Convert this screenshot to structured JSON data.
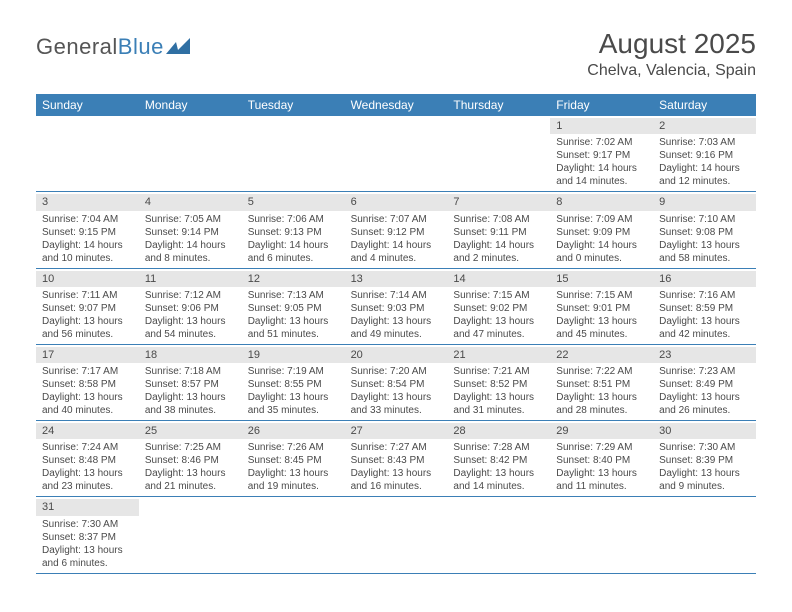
{
  "brand": {
    "general": "General",
    "blue": "Blue"
  },
  "title": "August 2025",
  "location": "Chelva, Valencia, Spain",
  "colors": {
    "header_bg": "#3b7fb6",
    "header_text": "#ffffff",
    "daynum_bg": "#e6e6e6",
    "text": "#4a4a4a",
    "rule": "#3b7fb6"
  },
  "day_names": [
    "Sunday",
    "Monday",
    "Tuesday",
    "Wednesday",
    "Thursday",
    "Friday",
    "Saturday"
  ],
  "weeks": [
    [
      {
        "n": "",
        "sr": "",
        "ss": "",
        "dl": ""
      },
      {
        "n": "",
        "sr": "",
        "ss": "",
        "dl": ""
      },
      {
        "n": "",
        "sr": "",
        "ss": "",
        "dl": ""
      },
      {
        "n": "",
        "sr": "",
        "ss": "",
        "dl": ""
      },
      {
        "n": "",
        "sr": "",
        "ss": "",
        "dl": ""
      },
      {
        "n": "1",
        "sr": "Sunrise: 7:02 AM",
        "ss": "Sunset: 9:17 PM",
        "dl": "Daylight: 14 hours and 14 minutes."
      },
      {
        "n": "2",
        "sr": "Sunrise: 7:03 AM",
        "ss": "Sunset: 9:16 PM",
        "dl": "Daylight: 14 hours and 12 minutes."
      }
    ],
    [
      {
        "n": "3",
        "sr": "Sunrise: 7:04 AM",
        "ss": "Sunset: 9:15 PM",
        "dl": "Daylight: 14 hours and 10 minutes."
      },
      {
        "n": "4",
        "sr": "Sunrise: 7:05 AM",
        "ss": "Sunset: 9:14 PM",
        "dl": "Daylight: 14 hours and 8 minutes."
      },
      {
        "n": "5",
        "sr": "Sunrise: 7:06 AM",
        "ss": "Sunset: 9:13 PM",
        "dl": "Daylight: 14 hours and 6 minutes."
      },
      {
        "n": "6",
        "sr": "Sunrise: 7:07 AM",
        "ss": "Sunset: 9:12 PM",
        "dl": "Daylight: 14 hours and 4 minutes."
      },
      {
        "n": "7",
        "sr": "Sunrise: 7:08 AM",
        "ss": "Sunset: 9:11 PM",
        "dl": "Daylight: 14 hours and 2 minutes."
      },
      {
        "n": "8",
        "sr": "Sunrise: 7:09 AM",
        "ss": "Sunset: 9:09 PM",
        "dl": "Daylight: 14 hours and 0 minutes."
      },
      {
        "n": "9",
        "sr": "Sunrise: 7:10 AM",
        "ss": "Sunset: 9:08 PM",
        "dl": "Daylight: 13 hours and 58 minutes."
      }
    ],
    [
      {
        "n": "10",
        "sr": "Sunrise: 7:11 AM",
        "ss": "Sunset: 9:07 PM",
        "dl": "Daylight: 13 hours and 56 minutes."
      },
      {
        "n": "11",
        "sr": "Sunrise: 7:12 AM",
        "ss": "Sunset: 9:06 PM",
        "dl": "Daylight: 13 hours and 54 minutes."
      },
      {
        "n": "12",
        "sr": "Sunrise: 7:13 AM",
        "ss": "Sunset: 9:05 PM",
        "dl": "Daylight: 13 hours and 51 minutes."
      },
      {
        "n": "13",
        "sr": "Sunrise: 7:14 AM",
        "ss": "Sunset: 9:03 PM",
        "dl": "Daylight: 13 hours and 49 minutes."
      },
      {
        "n": "14",
        "sr": "Sunrise: 7:15 AM",
        "ss": "Sunset: 9:02 PM",
        "dl": "Daylight: 13 hours and 47 minutes."
      },
      {
        "n": "15",
        "sr": "Sunrise: 7:15 AM",
        "ss": "Sunset: 9:01 PM",
        "dl": "Daylight: 13 hours and 45 minutes."
      },
      {
        "n": "16",
        "sr": "Sunrise: 7:16 AM",
        "ss": "Sunset: 8:59 PM",
        "dl": "Daylight: 13 hours and 42 minutes."
      }
    ],
    [
      {
        "n": "17",
        "sr": "Sunrise: 7:17 AM",
        "ss": "Sunset: 8:58 PM",
        "dl": "Daylight: 13 hours and 40 minutes."
      },
      {
        "n": "18",
        "sr": "Sunrise: 7:18 AM",
        "ss": "Sunset: 8:57 PM",
        "dl": "Daylight: 13 hours and 38 minutes."
      },
      {
        "n": "19",
        "sr": "Sunrise: 7:19 AM",
        "ss": "Sunset: 8:55 PM",
        "dl": "Daylight: 13 hours and 35 minutes."
      },
      {
        "n": "20",
        "sr": "Sunrise: 7:20 AM",
        "ss": "Sunset: 8:54 PM",
        "dl": "Daylight: 13 hours and 33 minutes."
      },
      {
        "n": "21",
        "sr": "Sunrise: 7:21 AM",
        "ss": "Sunset: 8:52 PM",
        "dl": "Daylight: 13 hours and 31 minutes."
      },
      {
        "n": "22",
        "sr": "Sunrise: 7:22 AM",
        "ss": "Sunset: 8:51 PM",
        "dl": "Daylight: 13 hours and 28 minutes."
      },
      {
        "n": "23",
        "sr": "Sunrise: 7:23 AM",
        "ss": "Sunset: 8:49 PM",
        "dl": "Daylight: 13 hours and 26 minutes."
      }
    ],
    [
      {
        "n": "24",
        "sr": "Sunrise: 7:24 AM",
        "ss": "Sunset: 8:48 PM",
        "dl": "Daylight: 13 hours and 23 minutes."
      },
      {
        "n": "25",
        "sr": "Sunrise: 7:25 AM",
        "ss": "Sunset: 8:46 PM",
        "dl": "Daylight: 13 hours and 21 minutes."
      },
      {
        "n": "26",
        "sr": "Sunrise: 7:26 AM",
        "ss": "Sunset: 8:45 PM",
        "dl": "Daylight: 13 hours and 19 minutes."
      },
      {
        "n": "27",
        "sr": "Sunrise: 7:27 AM",
        "ss": "Sunset: 8:43 PM",
        "dl": "Daylight: 13 hours and 16 minutes."
      },
      {
        "n": "28",
        "sr": "Sunrise: 7:28 AM",
        "ss": "Sunset: 8:42 PM",
        "dl": "Daylight: 13 hours and 14 minutes."
      },
      {
        "n": "29",
        "sr": "Sunrise: 7:29 AM",
        "ss": "Sunset: 8:40 PM",
        "dl": "Daylight: 13 hours and 11 minutes."
      },
      {
        "n": "30",
        "sr": "Sunrise: 7:30 AM",
        "ss": "Sunset: 8:39 PM",
        "dl": "Daylight: 13 hours and 9 minutes."
      }
    ],
    [
      {
        "n": "31",
        "sr": "Sunrise: 7:30 AM",
        "ss": "Sunset: 8:37 PM",
        "dl": "Daylight: 13 hours and 6 minutes."
      },
      {
        "n": "",
        "sr": "",
        "ss": "",
        "dl": ""
      },
      {
        "n": "",
        "sr": "",
        "ss": "",
        "dl": ""
      },
      {
        "n": "",
        "sr": "",
        "ss": "",
        "dl": ""
      },
      {
        "n": "",
        "sr": "",
        "ss": "",
        "dl": ""
      },
      {
        "n": "",
        "sr": "",
        "ss": "",
        "dl": ""
      },
      {
        "n": "",
        "sr": "",
        "ss": "",
        "dl": ""
      }
    ]
  ]
}
